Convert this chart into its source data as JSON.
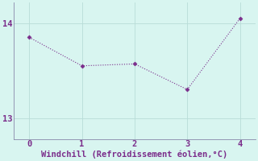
{
  "x": [
    0,
    1,
    2,
    3,
    4
  ],
  "y": [
    13.85,
    13.55,
    13.57,
    13.3,
    14.05
  ],
  "line_color": "#7b2d8b",
  "marker": "D",
  "marker_size": 2.5,
  "background_color": "#d8f5f0",
  "grid_color": "#b8ddd8",
  "spine_color": "#8888aa",
  "xlabel": "Windchill (Refroidissement éolien,°C)",
  "xlabel_color": "#7b2d8b",
  "xlabel_fontsize": 7.5,
  "tick_color": "#7b2d8b",
  "tick_fontsize": 7.5,
  "xlim": [
    -0.3,
    4.3
  ],
  "ylim": [
    12.78,
    14.22
  ],
  "yticks": [
    13,
    14
  ],
  "xticks": [
    0,
    1,
    2,
    3,
    4
  ]
}
